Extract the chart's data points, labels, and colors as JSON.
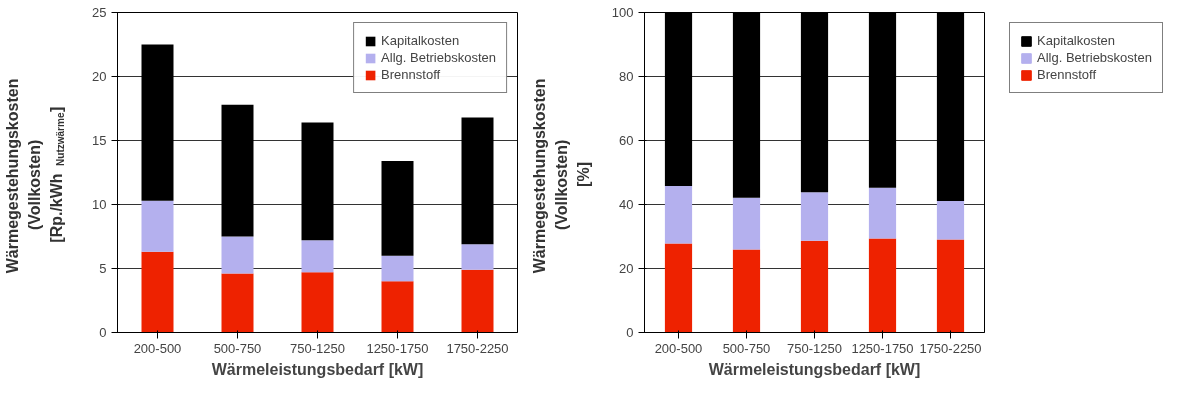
{
  "chart_data": [
    {
      "type": "bar",
      "stacked": true,
      "xlabel": "Wärmeleistungsbedarf [kW]",
      "ylabel": "Wärmegestehungskosten\n(Vollkosten)\n[Rp./kWh$_{Nutzwärme}$]",
      "categories": [
        "200-500",
        "500-750",
        "750-1250",
        "1250-1750",
        "1750-2250"
      ],
      "series": [
        {
          "name": "Brennstoff",
          "color": "#ee2200",
          "values": [
            6.3,
            4.6,
            4.7,
            4.0,
            4.9
          ]
        },
        {
          "name": "Allg. Betriebskosten",
          "color": "#b4b0ee",
          "values": [
            4.0,
            2.9,
            2.5,
            2.0,
            2.0
          ]
        },
        {
          "name": "Kapitalkosten",
          "color": "#000000",
          "values": [
            12.2,
            10.3,
            9.2,
            7.4,
            9.9
          ]
        }
      ],
      "ylim": [
        0,
        25
      ],
      "yticks": [
        0,
        5,
        10,
        15,
        20,
        25
      ],
      "grid": "y",
      "legend": "top right"
    },
    {
      "type": "bar",
      "stacked": true,
      "xlabel": "Wärmeleistungsbedarf [kW]",
      "ylabel": "Wärmegestehungskosten\n(Vollkosten)\n[%]",
      "categories": [
        "200-500",
        "500-750",
        "750-1250",
        "1250-1750",
        "1750-2250"
      ],
      "series": [
        {
          "name": "Brennstoff",
          "color": "#ee2200",
          "values": [
            27.8,
            25.9,
            28.7,
            29.4,
            29.1
          ]
        },
        {
          "name": "Allg. Betriebskosten",
          "color": "#b4b0ee",
          "values": [
            18.0,
            16.2,
            15.1,
            15.8,
            12.0
          ]
        },
        {
          "name": "Kapitalkosten",
          "color": "#000000",
          "values": [
            54.2,
            57.9,
            56.2,
            54.8,
            58.9
          ]
        }
      ],
      "ylim": [
        0,
        100
      ],
      "yticks": [
        0,
        20,
        40,
        60,
        80,
        100
      ],
      "grid": "y",
      "legend": "right"
    }
  ]
}
